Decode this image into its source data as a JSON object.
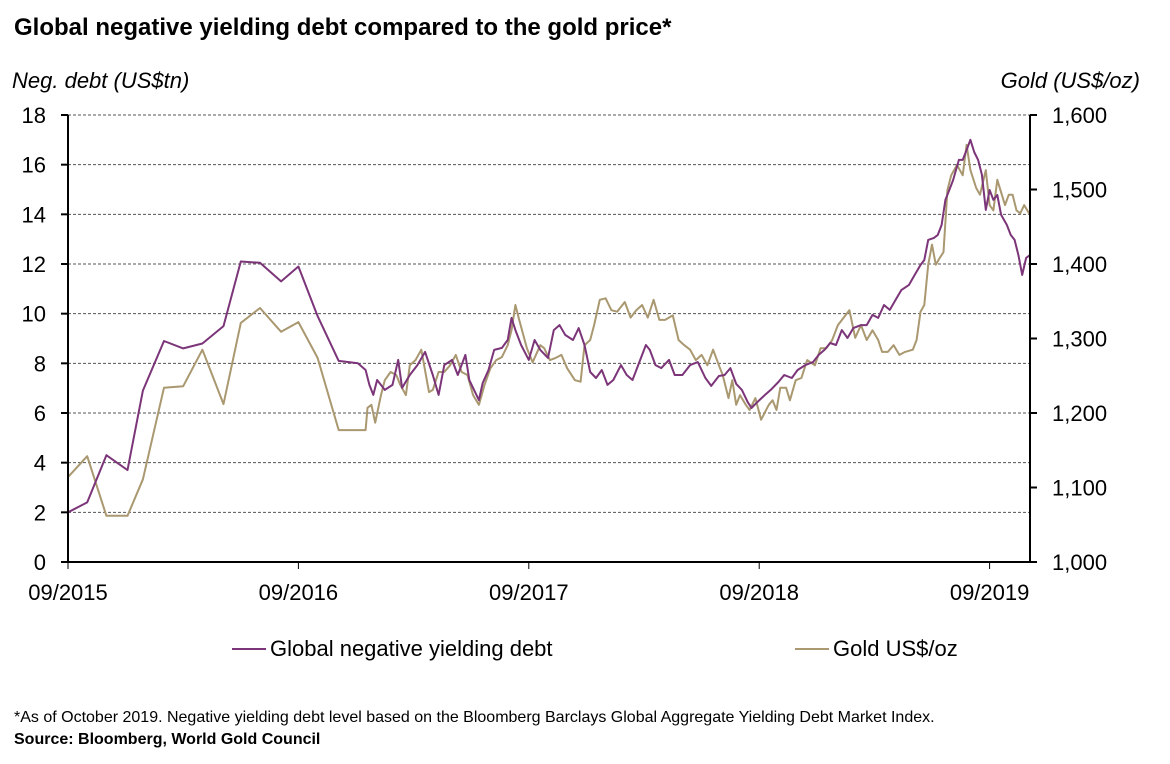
{
  "colors": {
    "debt": "#7b3578",
    "gold": "#a99870",
    "grid": "#555555",
    "axis": "#000000"
  },
  "title": "Global negative yielding debt compared to the gold price*",
  "legend": [
    {
      "label": "Global negative yielding debt",
      "series": "debt"
    },
    {
      "label": "Gold US$/oz",
      "series": "gold"
    }
  ],
  "footnote": "*As of October 2019. Negative yielding debt level based on the Bloomberg Barclays Global Aggregate Yielding Debt Market Index.",
  "source": "Source: Bloomberg, World Gold Council",
  "chart_data": {
    "type": "line",
    "title": "Global negative yielding debt compared to the gold price*",
    "xlabel": "",
    "x_unit": "months since 09/2015",
    "xlim": [
      0,
      50.1
    ],
    "x_ticks": [
      {
        "value": 0,
        "label": "09/2015"
      },
      {
        "value": 12,
        "label": "09/2016"
      },
      {
        "value": 24,
        "label": "09/2017"
      },
      {
        "value": 36,
        "label": "09/2018"
      },
      {
        "value": 48,
        "label": "09/2019"
      }
    ],
    "y_left": {
      "label": "Neg. debt (US$tn)",
      "ylim": [
        0,
        18
      ],
      "ticks": [
        {
          "value": 0,
          "label": "0"
        },
        {
          "value": 2,
          "label": "2"
        },
        {
          "value": 4,
          "label": "4"
        },
        {
          "value": 6,
          "label": "6"
        },
        {
          "value": 8,
          "label": "8"
        },
        {
          "value": 10,
          "label": "10"
        },
        {
          "value": 12,
          "label": "12"
        },
        {
          "value": 14,
          "label": "14"
        },
        {
          "value": 16,
          "label": "16"
        },
        {
          "value": 18,
          "label": "18"
        }
      ]
    },
    "y_right": {
      "label": "Gold (US$/oz)",
      "ylim": [
        1000,
        1600
      ],
      "ticks": [
        {
          "value": 1000,
          "label": "1,000"
        },
        {
          "value": 1100,
          "label": "1,100"
        },
        {
          "value": 1200,
          "label": "1,200"
        },
        {
          "value": 1300,
          "label": "1,300"
        },
        {
          "value": 1400,
          "label": "1,400"
        },
        {
          "value": 1500,
          "label": "1,500"
        },
        {
          "value": 1600,
          "label": "1,600"
        }
      ]
    },
    "grid": true,
    "legend_position": "bottom",
    "series": [
      {
        "name": "Global negative yielding debt",
        "axis": "left",
        "points": [
          [
            0,
            2.0
          ],
          [
            1.0,
            2.4
          ],
          [
            2.0,
            4.3
          ],
          [
            3.1,
            3.7
          ],
          [
            3.9,
            6.9
          ],
          [
            5.0,
            8.9
          ],
          [
            6.0,
            8.6
          ],
          [
            7.0,
            8.8
          ],
          [
            8.1,
            9.5
          ],
          [
            9.0,
            12.1
          ],
          [
            10.0,
            12.05
          ],
          [
            11.1,
            11.3
          ],
          [
            12.0,
            11.9
          ],
          [
            13.0,
            9.9
          ],
          [
            14.1,
            8.1
          ],
          [
            15.1,
            8.0
          ],
          [
            15.5,
            7.73
          ],
          [
            15.7,
            7.13
          ],
          [
            15.9,
            6.73
          ],
          [
            16.1,
            7.33
          ],
          [
            16.5,
            6.93
          ],
          [
            16.9,
            7.13
          ],
          [
            17.2,
            8.14
          ],
          [
            17.4,
            7.01
          ],
          [
            17.8,
            7.53
          ],
          [
            18.2,
            7.93
          ],
          [
            18.6,
            8.46
          ],
          [
            19.0,
            7.53
          ],
          [
            19.3,
            6.73
          ],
          [
            19.6,
            7.93
          ],
          [
            20.0,
            8.14
          ],
          [
            20.3,
            7.53
          ],
          [
            20.7,
            8.34
          ],
          [
            20.9,
            7.33
          ],
          [
            21.4,
            6.52
          ],
          [
            21.6,
            7.21
          ],
          [
            21.9,
            7.73
          ],
          [
            22.2,
            8.54
          ],
          [
            22.6,
            8.62
          ],
          [
            22.9,
            8.94
          ],
          [
            23.1,
            9.83
          ],
          [
            23.3,
            9.34
          ],
          [
            23.6,
            8.74
          ],
          [
            24.0,
            8.14
          ],
          [
            24.3,
            8.94
          ],
          [
            24.6,
            8.54
          ],
          [
            25.0,
            8.22
          ],
          [
            25.3,
            9.34
          ],
          [
            25.6,
            9.54
          ],
          [
            25.9,
            9.14
          ],
          [
            26.3,
            8.94
          ],
          [
            26.6,
            9.42
          ],
          [
            26.9,
            8.74
          ],
          [
            27.2,
            7.65
          ],
          [
            27.5,
            7.41
          ],
          [
            27.8,
            7.73
          ],
          [
            28.1,
            7.13
          ],
          [
            28.4,
            7.33
          ],
          [
            28.8,
            7.93
          ],
          [
            29.1,
            7.53
          ],
          [
            29.4,
            7.33
          ],
          [
            29.8,
            8.14
          ],
          [
            30.1,
            8.74
          ],
          [
            30.3,
            8.54
          ],
          [
            30.6,
            7.93
          ],
          [
            30.9,
            7.81
          ],
          [
            31.3,
            8.14
          ],
          [
            31.6,
            7.53
          ],
          [
            32.0,
            7.53
          ],
          [
            32.4,
            7.93
          ],
          [
            32.8,
            8.05
          ],
          [
            33.2,
            7.41
          ],
          [
            33.5,
            7.09
          ],
          [
            33.9,
            7.49
          ],
          [
            34.2,
            7.53
          ],
          [
            34.5,
            7.81
          ],
          [
            34.8,
            7.17
          ],
          [
            35.1,
            6.93
          ],
          [
            35.4,
            6.44
          ],
          [
            35.6,
            6.2
          ],
          [
            35.9,
            6.44
          ],
          [
            36.3,
            6.73
          ],
          [
            36.6,
            6.93
          ],
          [
            37.0,
            7.25
          ],
          [
            37.3,
            7.53
          ],
          [
            37.7,
            7.41
          ],
          [
            38.0,
            7.73
          ],
          [
            38.4,
            7.93
          ],
          [
            38.8,
            8.05
          ],
          [
            39.1,
            8.34
          ],
          [
            39.4,
            8.54
          ],
          [
            39.7,
            8.82
          ],
          [
            40.0,
            8.74
          ],
          [
            40.3,
            9.34
          ],
          [
            40.6,
            9.02
          ],
          [
            40.9,
            9.42
          ],
          [
            41.3,
            9.54
          ],
          [
            41.6,
            9.54
          ],
          [
            41.9,
            9.95
          ],
          [
            42.2,
            9.83
          ],
          [
            42.5,
            10.35
          ],
          [
            42.8,
            10.15
          ],
          [
            43.1,
            10.55
          ],
          [
            43.4,
            10.95
          ],
          [
            43.8,
            11.16
          ],
          [
            44.1,
            11.56
          ],
          [
            44.4,
            11.96
          ],
          [
            44.6,
            12.16
          ],
          [
            44.8,
            12.97
          ],
          [
            45.1,
            13.05
          ],
          [
            45.3,
            13.17
          ],
          [
            45.5,
            13.57
          ],
          [
            45.7,
            14.58
          ],
          [
            45.9,
            14.98
          ],
          [
            46.1,
            15.38
          ],
          [
            46.4,
            16.19
          ],
          [
            46.6,
            16.19
          ],
          [
            46.8,
            16.59
          ],
          [
            47.0,
            17.0
          ],
          [
            47.2,
            16.51
          ],
          [
            47.4,
            16.19
          ],
          [
            47.6,
            15.59
          ],
          [
            47.8,
            14.18
          ],
          [
            48.0,
            14.98
          ],
          [
            48.2,
            14.58
          ],
          [
            48.4,
            14.78
          ],
          [
            48.6,
            13.98
          ],
          [
            48.9,
            13.57
          ],
          [
            49.1,
            13.17
          ],
          [
            49.3,
            12.97
          ],
          [
            49.5,
            12.36
          ],
          [
            49.7,
            11.56
          ],
          [
            49.9,
            12.24
          ],
          [
            50.1,
            12.36
          ]
        ]
      },
      {
        "name": "Gold US$/oz",
        "axis": "right",
        "points": [
          [
            0,
            1114
          ],
          [
            1.0,
            1142
          ],
          [
            2.0,
            1062
          ],
          [
            3.1,
            1062
          ],
          [
            3.9,
            1111
          ],
          [
            5.0,
            1234
          ],
          [
            6.0,
            1236
          ],
          [
            7.0,
            1285
          ],
          [
            8.1,
            1212
          ],
          [
            9.0,
            1321
          ],
          [
            10.0,
            1341
          ],
          [
            11.1,
            1309
          ],
          [
            12.0,
            1322
          ],
          [
            13.0,
            1274
          ],
          [
            14.1,
            1177
          ],
          [
            15.1,
            1177
          ],
          [
            15.5,
            1177
          ],
          [
            15.6,
            1207
          ],
          [
            15.8,
            1211
          ],
          [
            16.0,
            1187
          ],
          [
            16.3,
            1224
          ],
          [
            16.5,
            1244
          ],
          [
            16.8,
            1255
          ],
          [
            17.1,
            1251
          ],
          [
            17.3,
            1238
          ],
          [
            17.6,
            1224
          ],
          [
            17.8,
            1264
          ],
          [
            18.1,
            1271
          ],
          [
            18.4,
            1285
          ],
          [
            18.8,
            1228
          ],
          [
            19.0,
            1231
          ],
          [
            19.3,
            1255
          ],
          [
            19.6,
            1255
          ],
          [
            19.9,
            1264
          ],
          [
            20.2,
            1278
          ],
          [
            20.5,
            1255
          ],
          [
            20.8,
            1251
          ],
          [
            21.1,
            1224
          ],
          [
            21.4,
            1211
          ],
          [
            21.7,
            1238
          ],
          [
            22.0,
            1260
          ],
          [
            22.3,
            1271
          ],
          [
            22.6,
            1275
          ],
          [
            22.9,
            1291
          ],
          [
            23.1,
            1311
          ],
          [
            23.3,
            1345
          ],
          [
            23.5,
            1325
          ],
          [
            23.9,
            1287
          ],
          [
            24.2,
            1268
          ],
          [
            24.6,
            1291
          ],
          [
            24.8,
            1287
          ],
          [
            25.1,
            1271
          ],
          [
            25.4,
            1274
          ],
          [
            25.7,
            1278
          ],
          [
            26.0,
            1260
          ],
          [
            26.4,
            1244
          ],
          [
            26.7,
            1242
          ],
          [
            26.9,
            1291
          ],
          [
            27.2,
            1298
          ],
          [
            27.4,
            1318
          ],
          [
            27.7,
            1352
          ],
          [
            28.0,
            1354
          ],
          [
            28.3,
            1338
          ],
          [
            28.6,
            1336
          ],
          [
            29.0,
            1349
          ],
          [
            29.3,
            1328
          ],
          [
            29.6,
            1338
          ],
          [
            29.9,
            1345
          ],
          [
            30.2,
            1328
          ],
          [
            30.5,
            1352
          ],
          [
            30.8,
            1325
          ],
          [
            31.1,
            1325
          ],
          [
            31.5,
            1331
          ],
          [
            31.8,
            1298
          ],
          [
            32.1,
            1291
          ],
          [
            32.4,
            1285
          ],
          [
            32.7,
            1271
          ],
          [
            33.0,
            1278
          ],
          [
            33.3,
            1264
          ],
          [
            33.6,
            1285
          ],
          [
            33.9,
            1264
          ],
          [
            34.1,
            1251
          ],
          [
            34.4,
            1220
          ],
          [
            34.6,
            1244
          ],
          [
            34.8,
            1211
          ],
          [
            35.0,
            1224
          ],
          [
            35.3,
            1211
          ],
          [
            35.5,
            1204
          ],
          [
            35.8,
            1220
          ],
          [
            36.1,
            1191
          ],
          [
            36.5,
            1211
          ],
          [
            36.7,
            1217
          ],
          [
            36.9,
            1204
          ],
          [
            37.1,
            1234
          ],
          [
            37.4,
            1234
          ],
          [
            37.6,
            1217
          ],
          [
            37.9,
            1244
          ],
          [
            38.2,
            1247
          ],
          [
            38.5,
            1271
          ],
          [
            38.9,
            1264
          ],
          [
            39.2,
            1287
          ],
          [
            39.5,
            1287
          ],
          [
            39.8,
            1298
          ],
          [
            40.1,
            1318
          ],
          [
            40.4,
            1328
          ],
          [
            40.7,
            1338
          ],
          [
            41.0,
            1301
          ],
          [
            41.3,
            1318
          ],
          [
            41.6,
            1298
          ],
          [
            41.9,
            1311
          ],
          [
            42.2,
            1298
          ],
          [
            42.4,
            1282
          ],
          [
            42.7,
            1282
          ],
          [
            43.0,
            1291
          ],
          [
            43.3,
            1278
          ],
          [
            43.6,
            1282
          ],
          [
            44.0,
            1285
          ],
          [
            44.2,
            1298
          ],
          [
            44.4,
            1336
          ],
          [
            44.6,
            1345
          ],
          [
            44.8,
            1399
          ],
          [
            45.0,
            1426
          ],
          [
            45.2,
            1399
          ],
          [
            45.4,
            1408
          ],
          [
            45.6,
            1416
          ],
          [
            45.8,
            1499
          ],
          [
            46.0,
            1519
          ],
          [
            46.3,
            1533
          ],
          [
            46.6,
            1519
          ],
          [
            46.8,
            1560
          ],
          [
            47.0,
            1526
          ],
          [
            47.3,
            1502
          ],
          [
            47.5,
            1493
          ],
          [
            47.8,
            1526
          ],
          [
            48.0,
            1479
          ],
          [
            48.2,
            1472
          ],
          [
            48.4,
            1513
          ],
          [
            48.8,
            1479
          ],
          [
            49.0,
            1493
          ],
          [
            49.2,
            1493
          ],
          [
            49.4,
            1472
          ],
          [
            49.6,
            1468
          ],
          [
            49.8,
            1479
          ],
          [
            50.1,
            1466
          ]
        ]
      }
    ]
  }
}
